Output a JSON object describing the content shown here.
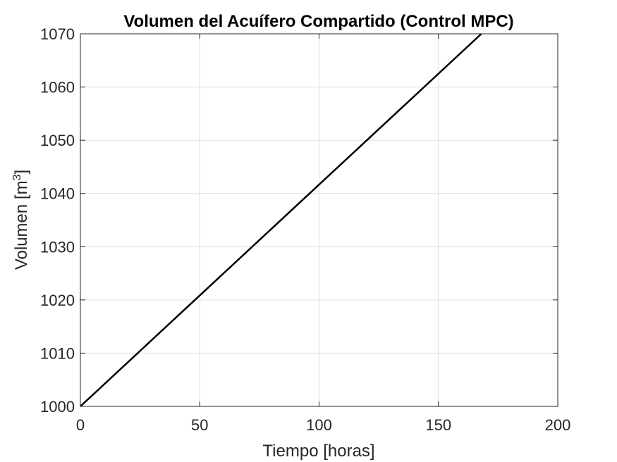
{
  "chart_data": {
    "type": "line",
    "title": "Volumen del Acuífero Compartido (Control MPC)",
    "xlabel": "Tiempo [horas]",
    "ylabel_main": "Volumen [m",
    "ylabel_superscript": "3",
    "ylabel_close": "]",
    "xlim": [
      0,
      200
    ],
    "ylim": [
      1000,
      1070
    ],
    "xticks": [
      0,
      50,
      100,
      150,
      200
    ],
    "yticks": [
      1000,
      1010,
      1020,
      1030,
      1040,
      1050,
      1060,
      1070
    ],
    "grid": true,
    "series": [
      {
        "color": "#000000",
        "x": [
          0,
          168
        ],
        "y": [
          1000,
          1070
        ]
      }
    ]
  }
}
